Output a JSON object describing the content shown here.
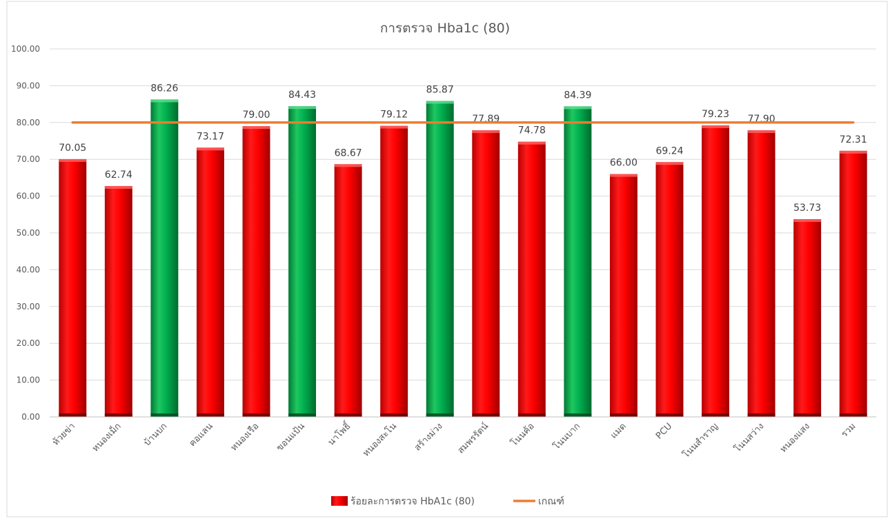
{
  "chart_data": {
    "type": "bar",
    "title": "การตรวจ Hba1c (80)",
    "categories": [
      "ห้วยข่า",
      "หนองเม็ก",
      "บ้านบก",
      "คอแลน",
      "หนองเรือ",
      "ขอนแป้น",
      "นาโพธิ์",
      "หนองสะโน",
      "สร้างม่วง",
      "สมพรรัตน์",
      "โนนค้อ",
      "โนนบาก",
      "แมด",
      "PCU",
      "โนนสำราญ",
      "โนนสว่าง",
      "หนองแสง",
      "รวม"
    ],
    "values": [
      70.05,
      62.74,
      86.26,
      73.17,
      79.0,
      84.43,
      68.67,
      79.12,
      85.87,
      77.89,
      74.78,
      84.39,
      66.0,
      69.24,
      79.23,
      77.9,
      53.73,
      72.31
    ],
    "value_labels": [
      "70.05",
      "62.74",
      "86.26",
      "73.17",
      "79.00",
      "84.43",
      "68.67",
      "79.12",
      "85.87",
      "77.89",
      "74.78",
      "84.39",
      "66.00",
      "69.24",
      "79.23",
      "77.90",
      "53.73",
      "72.31"
    ],
    "ylim": [
      0,
      100
    ],
    "yticks": [
      "0.00",
      "10.00",
      "20.00",
      "30.00",
      "40.00",
      "50.00",
      "60.00",
      "70.00",
      "80.00",
      "90.00",
      "100.00"
    ],
    "threshold": 80,
    "series": [
      {
        "name": "ร้อยละการตรวจ HbA1c (80)",
        "kind": "bar"
      },
      {
        "name": "เกณฑ์",
        "kind": "line"
      }
    ],
    "colors": {
      "below": "#ff0000",
      "above": "#00b050",
      "threshold": "#ed7d31",
      "grid": "#d9d9d9",
      "text": "#595959"
    },
    "legend_position": "bottom",
    "grid": true
  }
}
